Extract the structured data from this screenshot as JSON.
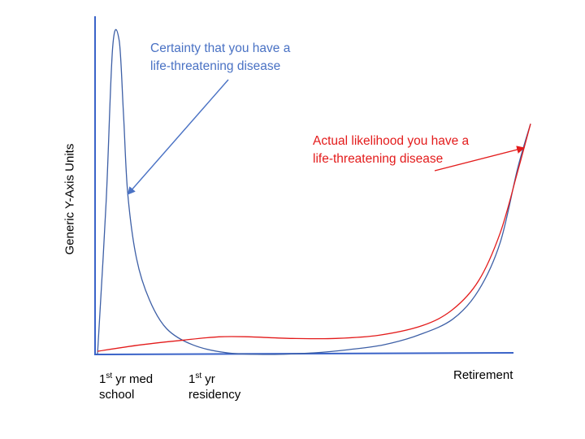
{
  "chart_data": {
    "type": "line",
    "ylabel": "Generic Y-Axis Units",
    "xlabel": "",
    "ticks": [
      {
        "line1_main": "1",
        "line1_sup": "st",
        "line1_rest": " yr med",
        "line2": "school"
      },
      {
        "line1_main": "1",
        "line1_sup": "st",
        "line1_rest": " yr",
        "line2": "residency"
      },
      {
        "line1_main": "Retirement",
        "line1_sup": "",
        "line1_rest": "",
        "line2": ""
      }
    ],
    "x_tick_positions": [
      0.05,
      0.25,
      1.0
    ],
    "ylim": [
      0,
      100
    ],
    "xlim": [
      0,
      1
    ],
    "series": [
      {
        "color": "#3d5fa6",
        "x": [
          0,
          0.02,
          0.035,
          0.05,
          0.06,
          0.07,
          0.09,
          0.12,
          0.16,
          0.22,
          0.3,
          0.4,
          0.5,
          0.58,
          0.66,
          0.74,
          0.82,
          0.88,
          0.93,
          0.97,
          1.0
        ],
        "y": [
          0,
          48,
          96,
          98,
          75,
          50,
          30,
          17,
          8,
          3,
          0.5,
          0,
          0.5,
          1.5,
          3,
          6,
          11,
          20,
          35,
          58,
          72
        ]
      },
      {
        "color": "#e31b1b",
        "x": [
          0,
          0.1,
          0.2,
          0.28,
          0.35,
          0.45,
          0.55,
          0.65,
          0.75,
          0.82,
          0.88,
          0.93,
          0.97,
          1.0
        ],
        "y": [
          1,
          3,
          4.5,
          5.5,
          5.5,
          5,
          5,
          6,
          9,
          14,
          23,
          38,
          57,
          72
        ]
      }
    ],
    "annotations": [
      {
        "lines": [
          "Certainty that you have a",
          "life-threatening disease"
        ],
        "color": "#4a72c4",
        "target_series": 0,
        "target_x": 0.07
      },
      {
        "lines": [
          "Actual likelihood you have a",
          "life-threatening disease"
        ],
        "color": "#e31b1b",
        "target_series": 1,
        "target_x": 0.985
      }
    ]
  }
}
